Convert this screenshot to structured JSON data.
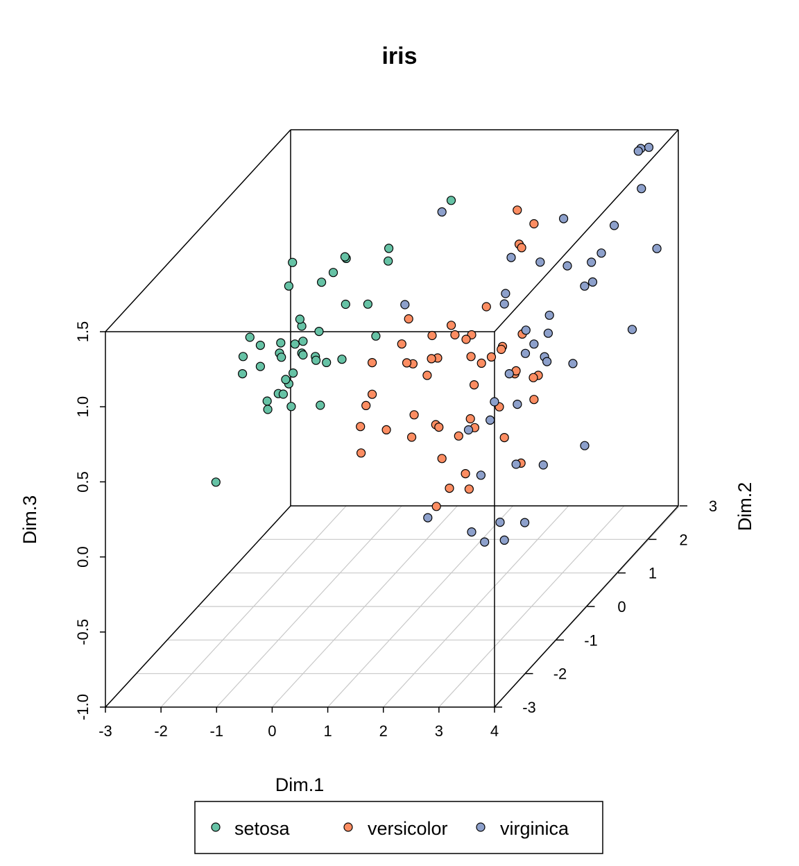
{
  "chart_data": {
    "type": "scatter3d",
    "title": "iris",
    "xlabel": "Dim.1",
    "ylabel": "Dim.2",
    "zlabel": "Dim.3",
    "xlim": [
      -3,
      4
    ],
    "ylim": [
      -3,
      3
    ],
    "zlim": [
      -1,
      1.5
    ],
    "x_ticks": [
      "-3",
      "-2",
      "-1",
      "0",
      "1",
      "2",
      "3",
      "4"
    ],
    "y_ticks": [
      "-3",
      "-2",
      "-1",
      "0",
      "1",
      "2",
      "3"
    ],
    "z_ticks": [
      "-1.0",
      "-0.5",
      "0.0",
      "0.5",
      "1.0",
      "1.5"
    ],
    "legend": {
      "position": "bottom",
      "entries": [
        "setosa",
        "versicolor",
        "virginica"
      ]
    },
    "colors": {
      "setosa": "#66c2a5",
      "versicolor": "#fc8d62",
      "virginica": "#8da0cb"
    },
    "series": [
      {
        "name": "setosa",
        "points": [
          [
            -2.3,
            0.2,
            0.62
          ],
          [
            -2.1,
            0.4,
            0.65
          ],
          [
            -2.2,
            0.0,
            0.55
          ],
          [
            -1.9,
            -0.3,
            0.86
          ],
          [
            -1.8,
            0.9,
            1.09
          ],
          [
            -1.7,
            0.6,
            1.0
          ],
          [
            -1.6,
            -0.5,
            0.71
          ],
          [
            -1.7,
            0.3,
            0.62
          ],
          [
            -1.5,
            0.0,
            0.66
          ],
          [
            -1.4,
            -0.2,
            0.8
          ],
          [
            -1.3,
            0.3,
            0.8
          ],
          [
            -1.2,
            -0.1,
            0.77
          ],
          [
            -1.5,
            0.7,
            0.61
          ],
          [
            -1.3,
            0.3,
            0.62
          ],
          [
            -1.1,
            0.5,
            0.72
          ],
          [
            -1.0,
            -0.2,
            0.72
          ],
          [
            -1.0,
            0.2,
            0.62
          ],
          [
            -1.1,
            0.4,
            0.55
          ],
          [
            -1.4,
            0.2,
            0.51
          ],
          [
            -1.2,
            -0.3,
            0.55
          ],
          [
            -1.5,
            -0.1,
            0.44
          ],
          [
            -1.7,
            0.5,
            0.4
          ],
          [
            -1.7,
            -0.1,
            0.39
          ],
          [
            -1.8,
            0.1,
            0.29
          ],
          [
            -1.8,
            0.6,
            0.28
          ],
          [
            -1.6,
            0.5,
            0.22
          ],
          [
            -0.8,
            0.2,
            0.58
          ],
          [
            -0.8,
            0.7,
            0.49
          ],
          [
            -0.8,
            0.0,
            0.34
          ],
          [
            -1.0,
            1.2,
            1.05
          ],
          [
            -1.0,
            0.4,
            1.07
          ],
          [
            -0.9,
            0.6,
            1.09
          ],
          [
            -0.8,
            0.8,
            1.15
          ],
          [
            -1.0,
            -0.3,
            0.98
          ],
          [
            -0.4,
            1.5,
            1.05
          ],
          [
            -0.3,
            1.3,
            1.01
          ],
          [
            -0.4,
            0.1,
            0.99
          ],
          [
            -0.5,
            1.0,
            0.79
          ],
          [
            -0.3,
            0.9,
            0.6
          ],
          [
            0.5,
            1.9,
            1.28
          ],
          [
            -2.4,
            -0.5,
            -0.06
          ]
        ]
      },
      {
        "name": "versicolor",
        "points": [
          [
            0.9,
            -0.2,
            0.96
          ],
          [
            1.2,
            -0.6,
            0.75
          ],
          [
            1.5,
            0.1,
            0.85
          ],
          [
            1.4,
            0.4,
            0.72
          ],
          [
            1.7,
            0.4,
            0.72
          ],
          [
            1.8,
            0.2,
            0.62
          ],
          [
            1.2,
            0.2,
            0.61
          ],
          [
            2.0,
            0.5,
            0.55
          ],
          [
            2.2,
            0.5,
            0.62
          ],
          [
            2.5,
            0.6,
            0.68
          ],
          [
            2.7,
            0.0,
            0.55
          ],
          [
            2.9,
            0.4,
            0.45
          ],
          [
            2.7,
            0.6,
            0.39
          ],
          [
            2.3,
            -0.6,
            0.61
          ],
          [
            2.1,
            0.0,
            0.62
          ],
          [
            1.8,
            0.7,
            0.84
          ],
          [
            2.0,
            1.4,
            1.1
          ],
          [
            1.8,
            1.7,
            1.26
          ],
          [
            2.6,
            0.8,
            1.37
          ],
          [
            2.6,
            0.4,
            1.3
          ],
          [
            2.4,
            0.1,
            0.69
          ],
          [
            1.2,
            0.0,
            0.65
          ],
          [
            0.9,
            0.4,
            0.45
          ],
          [
            0.3,
            -0.5,
            0.45
          ],
          [
            0.6,
            -1.2,
            0.29
          ],
          [
            1.5,
            -0.4,
            0.3
          ],
          [
            1.9,
            0.0,
            0.25
          ],
          [
            2.2,
            -0.4,
            0.28
          ],
          [
            2.3,
            -1.4,
            0.1
          ],
          [
            1.5,
            -0.2,
            0.03
          ],
          [
            1.8,
            -0.2,
            0.18
          ],
          [
            2.2,
            0.4,
            0.24
          ],
          [
            2.6,
            0.8,
            0.2
          ],
          [
            2.4,
            0.2,
            0.08
          ],
          [
            2.7,
            0.2,
            -0.09
          ],
          [
            1.7,
            0.2,
            -0.16
          ],
          [
            1.6,
            0.5,
            -0.33
          ],
          [
            0.9,
            0.7,
            -0.49
          ],
          [
            0.0,
            0.7,
            0.02
          ],
          [
            1.0,
            0.6,
            0.06
          ],
          [
            0.9,
            -0.1,
            0.15
          ],
          [
            0.5,
            0.7,
            0.12
          ],
          [
            0.2,
            -0.5,
            0.31
          ],
          [
            0.3,
            -0.3,
            0.48
          ],
          [
            0.0,
            1.2,
            0.48
          ],
          [
            -0.2,
            0.6,
            0.49
          ],
          [
            0.7,
            0.1,
            0.6
          ],
          [
            1.1,
            0.2,
            0.76
          ],
          [
            1.6,
            0.4,
            0.69
          ],
          [
            2.5,
            0.4,
            0.48
          ]
        ]
      },
      {
        "name": "virginica",
        "points": [
          [
            3.5,
            2.9,
            1.41
          ],
          [
            3.3,
            3.0,
            1.38
          ],
          [
            3.2,
            3.1,
            1.34
          ],
          [
            2.8,
            1.4,
            1.27
          ],
          [
            3.6,
            1.6,
            1.18
          ],
          [
            3.7,
            1.0,
            1.13
          ],
          [
            3.2,
            0.8,
            1.09
          ],
          [
            3.3,
            1.4,
            0.98
          ],
          [
            3.4,
            1.0,
            0.91
          ],
          [
            3.6,
            0.9,
            0.96
          ],
          [
            2.3,
            0.6,
            1.19
          ],
          [
            2.6,
            1.0,
            1.07
          ],
          [
            2.2,
            0.6,
            0.95
          ],
          [
            2.4,
            0.2,
            0.97
          ],
          [
            2.9,
            0.0,
            0.84
          ],
          [
            3.1,
            0.4,
            0.85
          ],
          [
            3.1,
            -0.1,
            0.77
          ],
          [
            3.3,
            0.0,
            0.82
          ],
          [
            3.4,
            -0.3,
            0.73
          ],
          [
            3.5,
            -0.4,
            0.72
          ],
          [
            3.0,
            -0.2,
            0.73
          ],
          [
            3.8,
            -0.1,
            0.64
          ],
          [
            2.6,
            0.0,
            0.55
          ],
          [
            2.5,
            -0.3,
            0.43
          ],
          [
            2.2,
            -0.6,
            0.31
          ],
          [
            2.7,
            -0.8,
            0.42
          ],
          [
            3.3,
            -1.0,
            0.57
          ],
          [
            3.5,
            -1.4,
            0.26
          ],
          [
            2.7,
            -1.1,
            0.12
          ],
          [
            2.3,
            -2.1,
            0.06
          ],
          [
            3.2,
            -2.3,
            0.01
          ],
          [
            3.6,
            -2.1,
            0.03
          ],
          [
            3.6,
            -2.6,
            0.01
          ],
          [
            4.1,
            -1.6,
            0.3
          ],
          [
            4.1,
            -2.2,
            0.05
          ],
          [
            3.9,
            -2.5,
            0.0
          ],
          [
            4.4,
            -0.8,
            0.25
          ],
          [
            4.7,
            0.2,
            0.8
          ],
          [
            4.7,
            1.0,
            1.16
          ],
          [
            4.2,
            1.4,
            1.47
          ],
          [
            0.5,
            1.6,
            1.27
          ],
          [
            0.0,
            1.3,
            0.72
          ]
        ]
      }
    ]
  }
}
